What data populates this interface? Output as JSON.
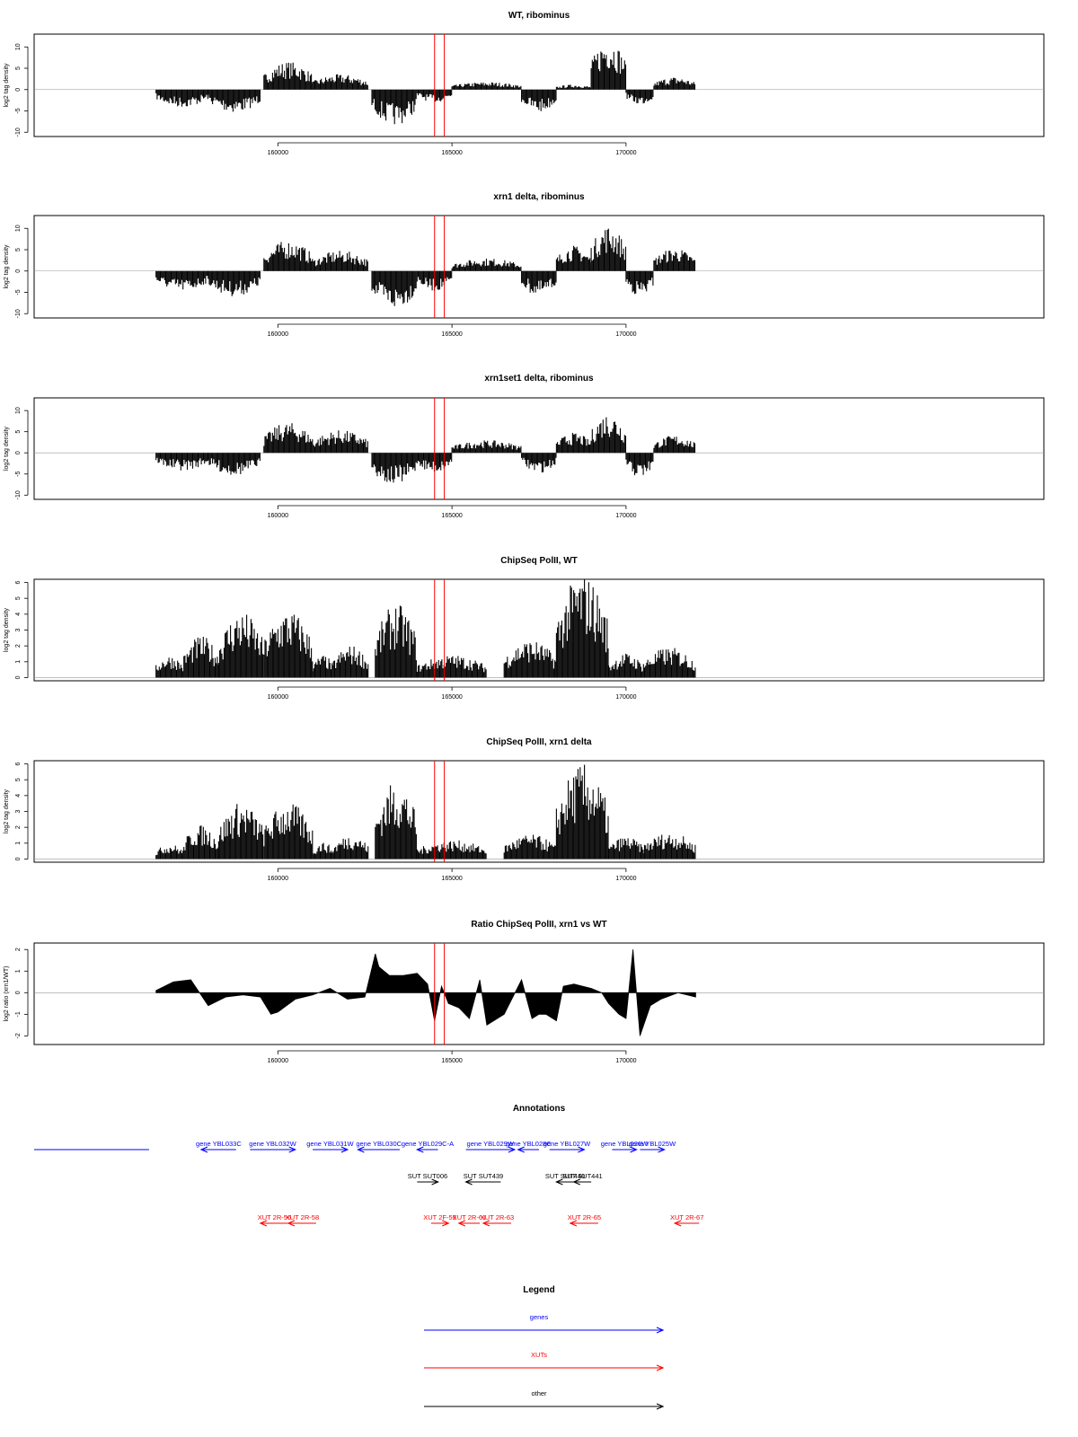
{
  "colors": {
    "genes": "#0000ff",
    "xuts": "#ff0000",
    "other": "#000000",
    "marker": "#ff0000",
    "bars": "#000000"
  },
  "x_axis": {
    "min": 153000,
    "max": 182000,
    "ticks": [
      160000,
      165000,
      170000
    ],
    "tick_labels": [
      "160000",
      "165000",
      "170000"
    ]
  },
  "markers": [
    164500,
    164780
  ],
  "chart_data": [
    {
      "type": "bar",
      "title": "WT, ribominus",
      "ylabel": "log2 tag density",
      "ylim": [
        -11,
        13
      ],
      "yticks": [
        -10,
        -5,
        0,
        5,
        10
      ],
      "ytick_labels": [
        "-10",
        "-5",
        "0",
        "5",
        "10"
      ],
      "segments": [
        {
          "x": [
            156500,
            158000
          ],
          "sign": -1,
          "amp": 3.5
        },
        {
          "x": [
            158000,
            159500
          ],
          "sign": -1,
          "amp": 4.5
        },
        {
          "x": [
            159600,
            161000
          ],
          "sign": 1,
          "amp": 5.5
        },
        {
          "x": [
            161000,
            162600
          ],
          "sign": 1,
          "amp": 3
        },
        {
          "x": [
            162700,
            164000
          ],
          "sign": -1,
          "amp": 7
        },
        {
          "x": [
            164000,
            165000
          ],
          "sign": -1,
          "amp": 2.5
        },
        {
          "x": [
            165000,
            167000
          ],
          "sign": 1,
          "amp": 1.5
        },
        {
          "x": [
            167000,
            168000
          ],
          "sign": -1,
          "amp": 4.5
        },
        {
          "x": [
            168000,
            169000
          ],
          "sign": 1,
          "amp": 1
        },
        {
          "x": [
            169000,
            170000
          ],
          "sign": 1,
          "amp": 10
        },
        {
          "x": [
            170000,
            170800
          ],
          "sign": -1,
          "amp": 3
        },
        {
          "x": [
            170800,
            172000
          ],
          "sign": 1,
          "amp": 2.5
        }
      ]
    },
    {
      "type": "bar",
      "title": "xrn1 delta, ribominus",
      "ylabel": "log2 tag density",
      "ylim": [
        -11,
        13
      ],
      "yticks": [
        -10,
        -5,
        0,
        5,
        10
      ],
      "ytick_labels": [
        "-10",
        "-5",
        "0",
        "5",
        "10"
      ],
      "segments": [
        {
          "x": [
            156500,
            158000
          ],
          "sign": -1,
          "amp": 4
        },
        {
          "x": [
            158000,
            159500
          ],
          "sign": -1,
          "amp": 5
        },
        {
          "x": [
            159600,
            161000
          ],
          "sign": 1,
          "amp": 6
        },
        {
          "x": [
            161000,
            162600
          ],
          "sign": 1,
          "amp": 4
        },
        {
          "x": [
            162700,
            164000
          ],
          "sign": -1,
          "amp": 7.5
        },
        {
          "x": [
            164000,
            165000
          ],
          "sign": -1,
          "amp": 4
        },
        {
          "x": [
            165000,
            167000
          ],
          "sign": 1,
          "amp": 2.5
        },
        {
          "x": [
            167000,
            168000
          ],
          "sign": -1,
          "amp": 5
        },
        {
          "x": [
            168000,
            169000
          ],
          "sign": 1,
          "amp": 5
        },
        {
          "x": [
            169000,
            170000
          ],
          "sign": 1,
          "amp": 9
        },
        {
          "x": [
            170000,
            170800
          ],
          "sign": -1,
          "amp": 5
        },
        {
          "x": [
            170800,
            172000
          ],
          "sign": 1,
          "amp": 4.5
        }
      ]
    },
    {
      "type": "bar",
      "title": "xrn1set1 delta, ribominus",
      "ylabel": "log2 tag density",
      "ylim": [
        -11,
        13
      ],
      "yticks": [
        -10,
        -5,
        0,
        5,
        10
      ],
      "ytick_labels": [
        "-10",
        "-5",
        "0",
        "5",
        "10"
      ],
      "segments": [
        {
          "x": [
            156500,
            158000
          ],
          "sign": -1,
          "amp": 3.5
        },
        {
          "x": [
            158000,
            159500
          ],
          "sign": -1,
          "amp": 4.5
        },
        {
          "x": [
            159600,
            161000
          ],
          "sign": 1,
          "amp": 6
        },
        {
          "x": [
            161000,
            162600
          ],
          "sign": 1,
          "amp": 4.5
        },
        {
          "x": [
            162700,
            164000
          ],
          "sign": -1,
          "amp": 6.5
        },
        {
          "x": [
            164000,
            165000
          ],
          "sign": -1,
          "amp": 4
        },
        {
          "x": [
            165000,
            167000
          ],
          "sign": 1,
          "amp": 2.5
        },
        {
          "x": [
            167000,
            168000
          ],
          "sign": -1,
          "amp": 4
        },
        {
          "x": [
            168000,
            169000
          ],
          "sign": 1,
          "amp": 4
        },
        {
          "x": [
            169000,
            170000
          ],
          "sign": 1,
          "amp": 8
        },
        {
          "x": [
            170000,
            170800
          ],
          "sign": -1,
          "amp": 5
        },
        {
          "x": [
            170800,
            172000
          ],
          "sign": 1,
          "amp": 3.5
        }
      ]
    },
    {
      "type": "bar",
      "title": "ChipSeq PolII, WT",
      "ylabel": "log2 tag density",
      "ylim": [
        -0.2,
        6.2
      ],
      "yticks": [
        0,
        1,
        2,
        3,
        4,
        5,
        6
      ],
      "ytick_labels": [
        "0",
        "1",
        "2",
        "3",
        "4",
        "5",
        "6"
      ],
      "segments": [
        {
          "x": [
            156500,
            157300
          ],
          "sign": 1,
          "amp": 1.2
        },
        {
          "x": [
            157300,
            158300
          ],
          "sign": 1,
          "amp": 2.2
        },
        {
          "x": [
            158300,
            159600
          ],
          "sign": 1,
          "amp": 3.5
        },
        {
          "x": [
            159600,
            161000
          ],
          "sign": 1,
          "amp": 3.6
        },
        {
          "x": [
            161000,
            161600
          ],
          "sign": 1,
          "amp": 1.2
        },
        {
          "x": [
            161600,
            162600
          ],
          "sign": 1,
          "amp": 1.7
        },
        {
          "x": [
            162800,
            164000
          ],
          "sign": 1,
          "amp": 3.9
        },
        {
          "x": [
            164000,
            166000
          ],
          "sign": 1,
          "amp": 1.2
        },
        {
          "x": [
            166500,
            168000
          ],
          "sign": 1,
          "amp": 2.0
        },
        {
          "x": [
            168000,
            169500
          ],
          "sign": 1,
          "amp": 5.5
        },
        {
          "x": [
            169500,
            170500
          ],
          "sign": 1,
          "amp": 1.3
        },
        {
          "x": [
            170500,
            172000
          ],
          "sign": 1,
          "amp": 1.6
        }
      ]
    },
    {
      "type": "bar",
      "title": "ChipSeq PolII, xrn1 delta",
      "ylabel": "log2 tag density",
      "ylim": [
        -0.2,
        6.2
      ],
      "yticks": [
        0,
        1,
        2,
        3,
        4,
        5,
        6
      ],
      "ytick_labels": [
        "0",
        "1",
        "2",
        "3",
        "4",
        "5",
        "6"
      ],
      "segments": [
        {
          "x": [
            156500,
            157300
          ],
          "sign": 1,
          "amp": 0.8
        },
        {
          "x": [
            157300,
            158300
          ],
          "sign": 1,
          "amp": 1.8
        },
        {
          "x": [
            158300,
            159600
          ],
          "sign": 1,
          "amp": 3.0
        },
        {
          "x": [
            159600,
            161000
          ],
          "sign": 1,
          "amp": 3.0
        },
        {
          "x": [
            161000,
            161600
          ],
          "sign": 1,
          "amp": 0.9
        },
        {
          "x": [
            161600,
            162600
          ],
          "sign": 1,
          "amp": 1.3
        },
        {
          "x": [
            162800,
            164000
          ],
          "sign": 1,
          "amp": 4.1
        },
        {
          "x": [
            164000,
            166000
          ],
          "sign": 1,
          "amp": 1.0
        },
        {
          "x": [
            166500,
            168000
          ],
          "sign": 1,
          "amp": 1.3
        },
        {
          "x": [
            168000,
            169500
          ],
          "sign": 1,
          "amp": 5.0
        },
        {
          "x": [
            169500,
            170500
          ],
          "sign": 1,
          "amp": 1.2
        },
        {
          "x": [
            170500,
            172000
          ],
          "sign": 1,
          "amp": 1.4
        }
      ]
    },
    {
      "type": "area",
      "title": "Ratio ChipSeq PolII, xrn1 vs WT",
      "ylabel": "log2 ratio (xrn1/WT)",
      "ylim": [
        -2.4,
        2.3
      ],
      "yticks": [
        -2,
        -1,
        0,
        1,
        2
      ],
      "ytick_labels": [
        "-2",
        "-1",
        "0",
        "1",
        "2"
      ],
      "x": [
        156500,
        157000,
        157500,
        158000,
        158500,
        159000,
        159500,
        159800,
        160000,
        160500,
        161000,
        161500,
        162000,
        162500,
        162800,
        162900,
        163200,
        163600,
        164000,
        164300,
        164500,
        164700,
        164900,
        165200,
        165500,
        165800,
        166000,
        166500,
        167000,
        167300,
        167500,
        167700,
        168000,
        168200,
        168500,
        169000,
        169300,
        169500,
        169800,
        170000,
        170200,
        170400,
        170700,
        171000,
        171500,
        172000
      ],
      "values": [
        0.1,
        0.5,
        0.6,
        -0.6,
        -0.2,
        -0.1,
        -0.2,
        -1.0,
        -0.9,
        -0.3,
        -0.1,
        0.2,
        -0.3,
        -0.2,
        1.8,
        1.2,
        0.8,
        0.8,
        0.9,
        0.4,
        -1.3,
        0.3,
        -0.5,
        -0.7,
        -1.2,
        0.6,
        -1.5,
        -1.0,
        0.6,
        -1.2,
        -1.0,
        -1.0,
        -1.3,
        0.3,
        0.4,
        0.2,
        0.0,
        -0.5,
        -1.0,
        -1.2,
        2.0,
        -2.0,
        -0.6,
        -0.3,
        0.0,
        -0.2
      ]
    }
  ],
  "annotations": {
    "title": "Annotations",
    "features": [
      {
        "label": "",
        "type": "genes",
        "start": 153000,
        "end": 156300,
        "row": 0,
        "arrow": "none"
      },
      {
        "label": "gene YBL033C",
        "type": "genes",
        "start": 157800,
        "end": 158800,
        "row": 0,
        "arrow": "left"
      },
      {
        "label": "gene YBL032W",
        "type": "genes",
        "start": 159200,
        "end": 160500,
        "row": 0,
        "arrow": "right"
      },
      {
        "label": "gene YBL031W",
        "type": "genes",
        "start": 161000,
        "end": 162000,
        "row": 0,
        "arrow": "right"
      },
      {
        "label": "gene YBL030C",
        "type": "genes",
        "start": 162300,
        "end": 163500,
        "row": 0,
        "arrow": "left"
      },
      {
        "label": "gene YBL029C-A",
        "type": "genes",
        "start": 164000,
        "end": 164600,
        "row": 0,
        "arrow": "left"
      },
      {
        "label": "gene YBL029W",
        "type": "genes",
        "start": 165400,
        "end": 166800,
        "row": 0,
        "arrow": "right"
      },
      {
        "label": "gene YBL028C",
        "type": "genes",
        "start": 166900,
        "end": 167500,
        "row": 0,
        "arrow": "left"
      },
      {
        "label": "gene YBL027W",
        "type": "genes",
        "start": 167800,
        "end": 168800,
        "row": 0,
        "arrow": "right"
      },
      {
        "label": "gene YBL026W",
        "type": "genes",
        "start": 169600,
        "end": 170300,
        "row": 0,
        "arrow": "right"
      },
      {
        "label": "gene YBL025W",
        "type": "genes",
        "start": 170400,
        "end": 171100,
        "row": 0,
        "arrow": "right"
      },
      {
        "label": "SUT SUT006",
        "type": "other",
        "start": 164000,
        "end": 164600,
        "row": 1,
        "arrow": "right"
      },
      {
        "label": "SUT SUT439",
        "type": "other",
        "start": 165400,
        "end": 166400,
        "row": 1,
        "arrow": "left"
      },
      {
        "label": "SUT SUT440",
        "type": "other",
        "start": 168000,
        "end": 168500,
        "row": 1,
        "arrow": "left"
      },
      {
        "label": "SUT SUT441",
        "type": "other",
        "start": 168500,
        "end": 169000,
        "row": 1,
        "arrow": "left"
      },
      {
        "label": "XUT 2R-56",
        "type": "xuts",
        "start": 159500,
        "end": 160300,
        "row": 2,
        "arrow": "left"
      },
      {
        "label": "XUT 2R-58",
        "type": "xuts",
        "start": 160300,
        "end": 161100,
        "row": 2,
        "arrow": "left"
      },
      {
        "label": "XUT 2F-59",
        "type": "xuts",
        "start": 164400,
        "end": 164900,
        "row": 2,
        "arrow": "right"
      },
      {
        "label": "XUT 2R-61",
        "type": "xuts",
        "start": 165200,
        "end": 165800,
        "row": 2,
        "arrow": "left"
      },
      {
        "label": "XUT 2R-63",
        "type": "xuts",
        "start": 165900,
        "end": 166700,
        "row": 2,
        "arrow": "left"
      },
      {
        "label": "XUT 2R-65",
        "type": "xuts",
        "start": 168400,
        "end": 169200,
        "row": 2,
        "arrow": "left"
      },
      {
        "label": "XUT 2R-67",
        "type": "xuts",
        "start": 171400,
        "end": 172100,
        "row": 2,
        "arrow": "left"
      }
    ]
  },
  "legend": {
    "title": "Legend",
    "items": [
      {
        "label": "genes",
        "type": "genes"
      },
      {
        "label": "XUTs",
        "type": "xuts"
      },
      {
        "label": "other",
        "type": "other"
      }
    ]
  }
}
